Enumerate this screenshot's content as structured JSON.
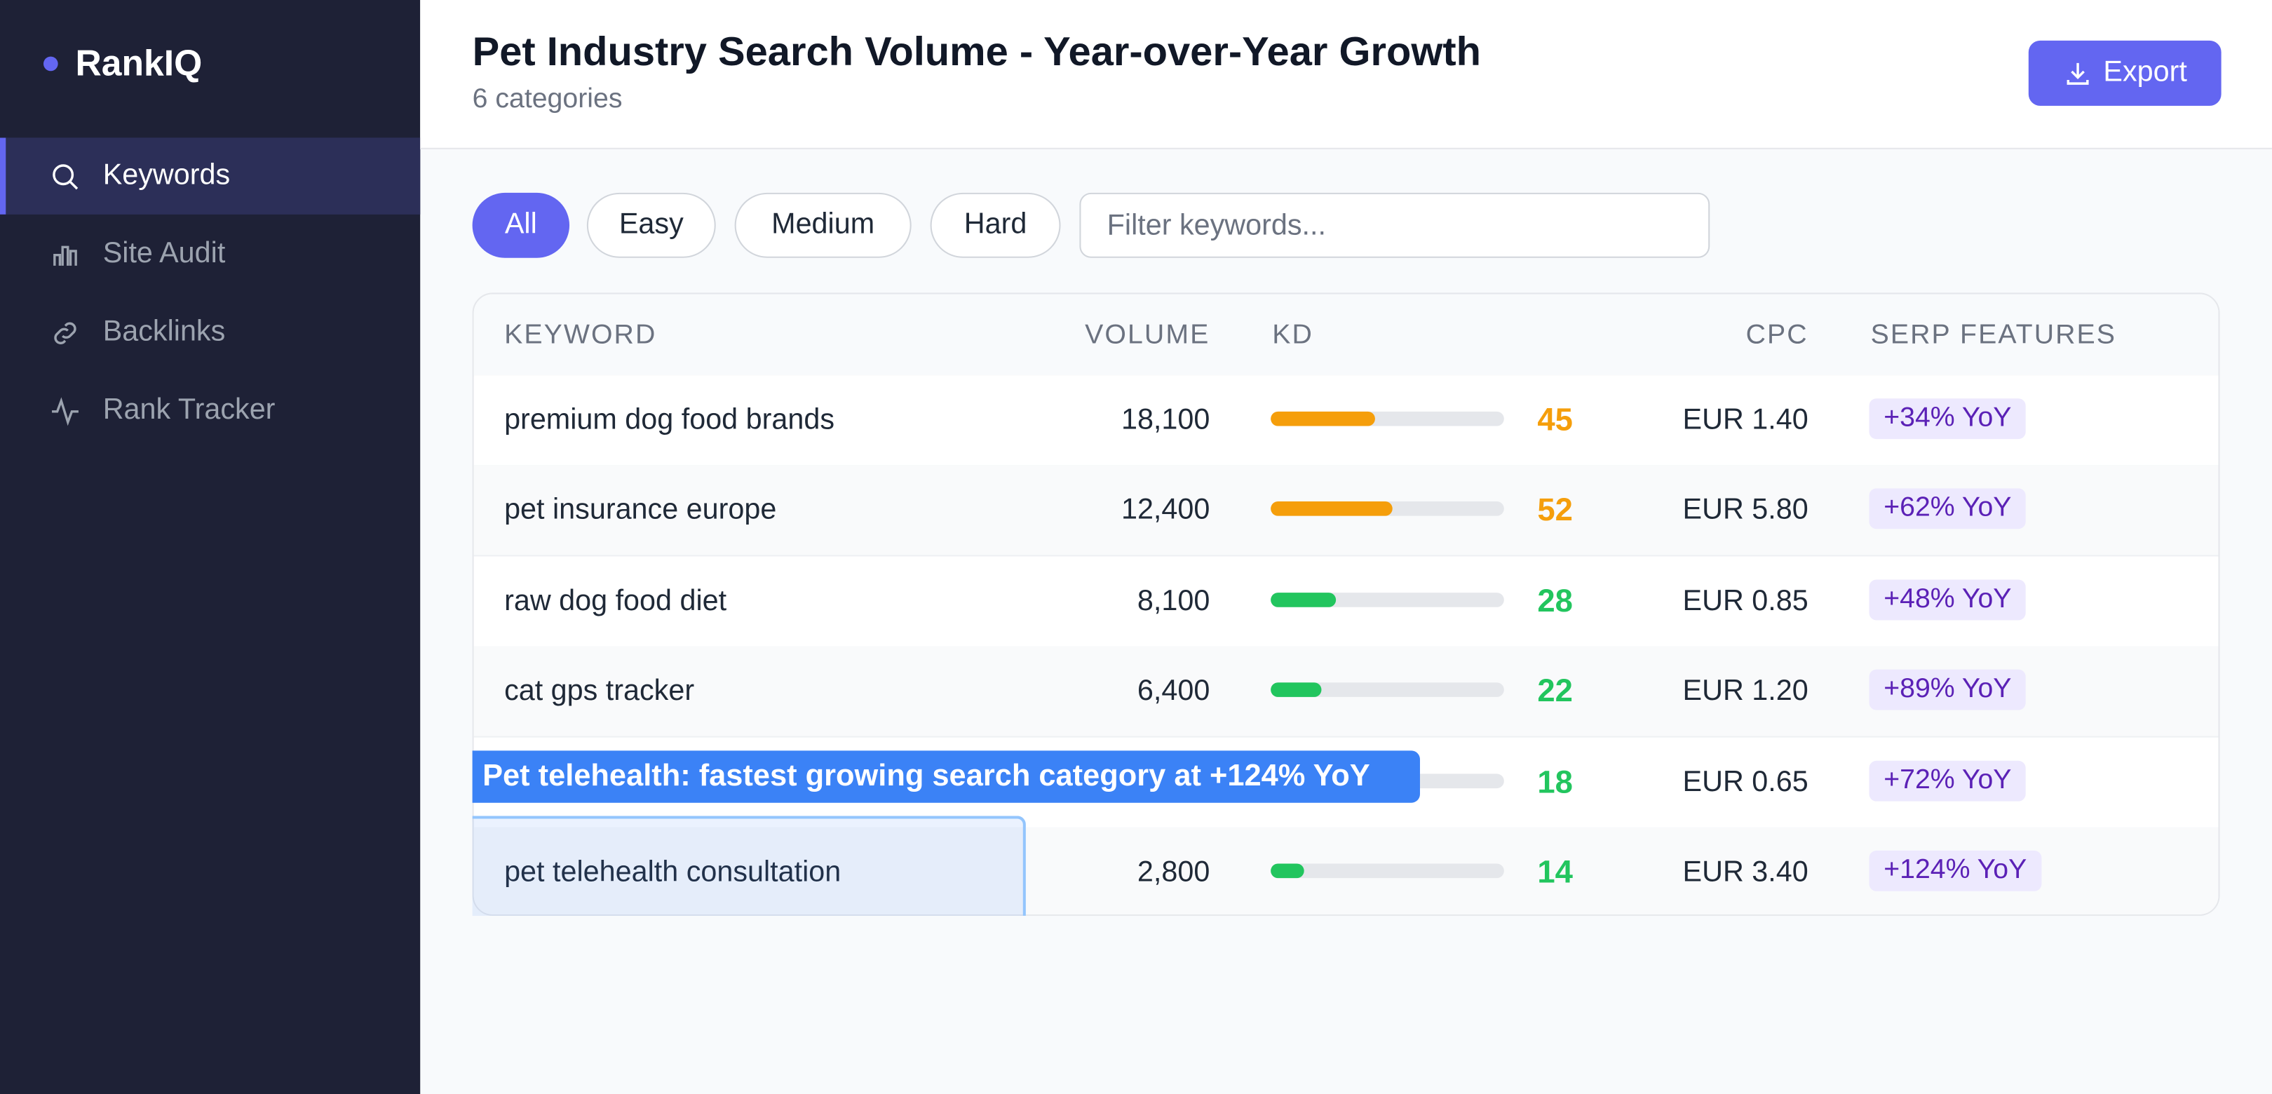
{
  "sidebar": {
    "brand": "RankIQ",
    "active": 0,
    "nav": [
      "Keywords",
      "Site Audit",
      "Backlinks",
      "Rank Tracker"
    ]
  },
  "header": {
    "title": "Pet Industry Search Volume - Year-over-Year Growth",
    "subtitle": "6 categories",
    "export": "Export"
  },
  "filters": {
    "active": 0,
    "options": [
      "All",
      "Easy",
      "Medium",
      "Hard"
    ],
    "placeholder": "Filter keywords..."
  },
  "table": {
    "columns": [
      "KEYWORD",
      "VOLUME",
      "KD",
      "CPC",
      "SERP FEATURES"
    ],
    "rows": [
      {
        "keyword": "premium dog food brands",
        "volume": "18,100",
        "kd": 45,
        "kd_color": "#f59e0b",
        "cpc": "EUR 1.40",
        "serp": "+34% YoY"
      },
      {
        "keyword": "pet insurance europe",
        "volume": "12,400",
        "kd": 52,
        "kd_color": "#f59e0b",
        "cpc": "EUR 5.80",
        "serp": "+62% YoY"
      },
      {
        "keyword": "raw dog food diet",
        "volume": "8,100",
        "kd": 28,
        "kd_color": "#22c55e",
        "cpc": "EUR 0.85",
        "serp": "+48% YoY"
      },
      {
        "keyword": "cat gps tracker",
        "volume": "6,400",
        "kd": 22,
        "kd_color": "#22c55e",
        "cpc": "EUR 1.20",
        "serp": "+89% YoY"
      },
      {
        "keyword": null,
        "volume": null,
        "kd": 18,
        "kd_color": "#22c55e",
        "cpc": "EUR 0.65",
        "serp": "+72% YoY"
      },
      {
        "keyword": "pet telehealth consultation",
        "volume": "2,800",
        "kd": 14,
        "kd_color": "#22c55e",
        "cpc": "EUR 3.40",
        "serp": "+124% YoY"
      }
    ]
  },
  "annotation": "Pet telehealth: fastest growing search category at +124% YoY"
}
